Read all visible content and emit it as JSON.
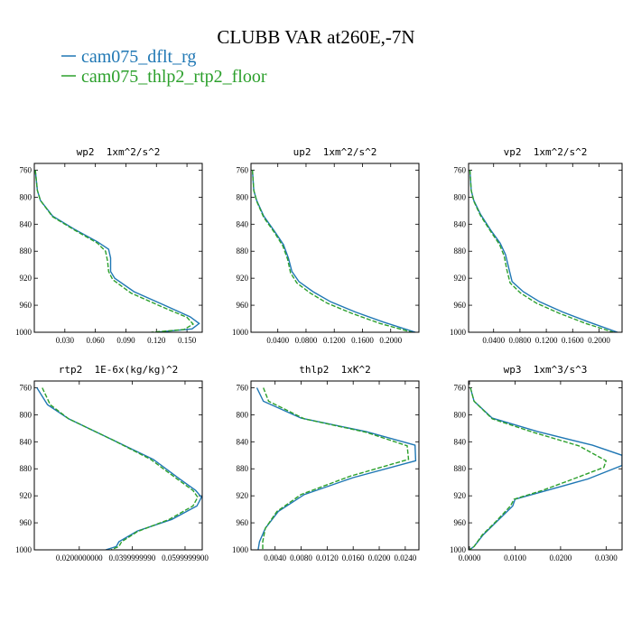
{
  "title": "CLUBB VAR at260E,-7N",
  "legend": [
    {
      "label": "cam075_dflt_rg",
      "color": "#1f77b4",
      "dash": "solid"
    },
    {
      "label": "cam075_thlp2_rtp2_floor",
      "color": "#2ca02c",
      "dash": "dashed"
    }
  ],
  "chart_data": [
    {
      "type": "line",
      "title": "wp2  1xm^2/s^2",
      "xlim": [
        0,
        0.165
      ],
      "ylim": [
        1000,
        750
      ],
      "y_inverted": true,
      "xticks": [
        0.03,
        0.06,
        0.09,
        0.12,
        0.15
      ],
      "xtick_labels": [
        "0.030",
        "0.060",
        "0.090",
        "0.120",
        "0.150"
      ],
      "yticks": [
        760,
        800,
        840,
        880,
        920,
        960,
        1000
      ],
      "ytick_labels": [
        "760",
        "800",
        "840",
        "880",
        "920",
        "960",
        "1000"
      ],
      "series": [
        {
          "name": "cam075_dflt_rg",
          "points": [
            [
              0.001,
              760
            ],
            [
              0.003,
              790
            ],
            [
              0.006,
              805
            ],
            [
              0.018,
              828
            ],
            [
              0.04,
              848
            ],
            [
              0.062,
              866
            ],
            [
              0.073,
              877
            ],
            [
              0.075,
              890
            ],
            [
              0.075,
              910
            ],
            [
              0.079,
              920
            ],
            [
              0.098,
              940
            ],
            [
              0.128,
              960
            ],
            [
              0.153,
              977
            ],
            [
              0.162,
              987
            ],
            [
              0.155,
              995
            ],
            [
              0.12,
              1000
            ]
          ]
        },
        {
          "name": "cam075_thlp2_rtp2_floor",
          "points": [
            [
              0.001,
              760
            ],
            [
              0.003,
              790
            ],
            [
              0.006,
              805
            ],
            [
              0.018,
              829
            ],
            [
              0.04,
              849
            ],
            [
              0.062,
              868
            ],
            [
              0.07,
              880
            ],
            [
              0.072,
              895
            ],
            [
              0.073,
              910
            ],
            [
              0.077,
              922
            ],
            [
              0.095,
              942
            ],
            [
              0.125,
              962
            ],
            [
              0.15,
              978
            ],
            [
              0.156,
              988
            ],
            [
              0.147,
              996
            ],
            [
              0.115,
              1000
            ]
          ]
        }
      ]
    },
    {
      "type": "line",
      "title": "up2  1xm^2/s^2",
      "xlim": [
        0.002,
        0.24
      ],
      "ylim": [
        1000,
        750
      ],
      "y_inverted": true,
      "xticks": [
        0.04,
        0.08,
        0.12,
        0.16,
        0.2
      ],
      "xtick_labels": [
        "0.0400",
        "0.0800",
        "0.1200",
        "0.1600",
        "0.2000"
      ],
      "yticks": [
        760,
        800,
        840,
        880,
        920,
        960,
        1000
      ],
      "ytick_labels": [
        "760",
        "800",
        "840",
        "880",
        "920",
        "960",
        "1000"
      ],
      "series": [
        {
          "name": "cam075_dflt_rg",
          "points": [
            [
              0.004,
              760
            ],
            [
              0.006,
              790
            ],
            [
              0.01,
              805
            ],
            [
              0.02,
              828
            ],
            [
              0.035,
              850
            ],
            [
              0.048,
              870
            ],
            [
              0.055,
              890
            ],
            [
              0.06,
              910
            ],
            [
              0.07,
              925
            ],
            [
              0.09,
              940
            ],
            [
              0.115,
              955
            ],
            [
              0.15,
              970
            ],
            [
              0.19,
              985
            ],
            [
              0.235,
              1000
            ]
          ]
        },
        {
          "name": "cam075_thlp2_rtp2_floor",
          "points": [
            [
              0.004,
              760
            ],
            [
              0.006,
              790
            ],
            [
              0.01,
              806
            ],
            [
              0.02,
              830
            ],
            [
              0.035,
              852
            ],
            [
              0.047,
              872
            ],
            [
              0.054,
              892
            ],
            [
              0.058,
              912
            ],
            [
              0.067,
              927
            ],
            [
              0.086,
              942
            ],
            [
              0.11,
              957
            ],
            [
              0.145,
              972
            ],
            [
              0.185,
              987
            ],
            [
              0.23,
              1000
            ]
          ]
        }
      ]
    },
    {
      "type": "line",
      "title": "vp2  1xm^2/s^2",
      "xlim": [
        0.002,
        0.235
      ],
      "ylim": [
        1000,
        750
      ],
      "y_inverted": true,
      "xticks": [
        0.04,
        0.08,
        0.12,
        0.16,
        0.2
      ],
      "xtick_labels": [
        "0.0400",
        "0.0800",
        "0.1200",
        "0.1600",
        "0.2000"
      ],
      "yticks": [
        760,
        800,
        840,
        880,
        920,
        960,
        1000
      ],
      "ytick_labels": [
        "760",
        "800",
        "840",
        "880",
        "920",
        "960",
        "1000"
      ],
      "series": [
        {
          "name": "cam075_dflt_rg",
          "points": [
            [
              0.004,
              760
            ],
            [
              0.006,
              790
            ],
            [
              0.01,
              805
            ],
            [
              0.02,
              825
            ],
            [
              0.035,
              848
            ],
            [
              0.05,
              868
            ],
            [
              0.058,
              885
            ],
            [
              0.063,
              905
            ],
            [
              0.068,
              925
            ],
            [
              0.085,
              940
            ],
            [
              0.11,
              955
            ],
            [
              0.145,
              970
            ],
            [
              0.185,
              985
            ],
            [
              0.228,
              1000
            ]
          ]
        },
        {
          "name": "cam075_thlp2_rtp2_floor",
          "points": [
            [
              0.004,
              760
            ],
            [
              0.006,
              790
            ],
            [
              0.01,
              806
            ],
            [
              0.02,
              827
            ],
            [
              0.035,
              850
            ],
            [
              0.049,
              870
            ],
            [
              0.056,
              887
            ],
            [
              0.06,
              907
            ],
            [
              0.065,
              927
            ],
            [
              0.081,
              942
            ],
            [
              0.105,
              957
            ],
            [
              0.14,
              972
            ],
            [
              0.18,
              987
            ],
            [
              0.222,
              1000
            ]
          ]
        }
      ]
    },
    {
      "type": "line",
      "title": "rtp2  1E-6x(kg/kg)^2",
      "xlim": [
        0.003,
        0.0665
      ],
      "ylim": [
        1000,
        750
      ],
      "y_inverted": true,
      "xticks": [
        0.02,
        0.04,
        0.06
      ],
      "xtick_labels": [
        "0.0200000000",
        "0.0399999990",
        "0.0599999900"
      ],
      "yticks": [
        760,
        800,
        840,
        880,
        920,
        960,
        1000
      ],
      "ytick_labels": [
        "760",
        "800",
        "840",
        "880",
        "920",
        "960",
        "1000"
      ],
      "series": [
        {
          "name": "cam075_dflt_rg",
          "points": [
            [
              0.004,
              760
            ],
            [
              0.008,
              785
            ],
            [
              0.016,
              806
            ],
            [
              0.033,
              838
            ],
            [
              0.048,
              866
            ],
            [
              0.058,
              895
            ],
            [
              0.064,
              912
            ],
            [
              0.0662,
              922
            ],
            [
              0.0645,
              935
            ],
            [
              0.055,
              955
            ],
            [
              0.042,
              972
            ],
            [
              0.035,
              988
            ],
            [
              0.034,
              995
            ],
            [
              0.03,
              1000
            ]
          ]
        },
        {
          "name": "cam075_thlp2_rtp2_floor",
          "points": [
            [
              0.006,
              760
            ],
            [
              0.009,
              785
            ],
            [
              0.016,
              806
            ],
            [
              0.033,
              838
            ],
            [
              0.047,
              866
            ],
            [
              0.057,
              895
            ],
            [
              0.063,
              912
            ],
            [
              0.0648,
              922
            ],
            [
              0.063,
              935
            ],
            [
              0.054,
              955
            ],
            [
              0.042,
              973
            ],
            [
              0.036,
              988
            ],
            [
              0.035,
              995
            ],
            [
              0.032,
              1000
            ]
          ]
        }
      ]
    },
    {
      "type": "line",
      "title": "thlp2  1xK^2",
      "xlim": [
        0.0003,
        0.0261
      ],
      "ylim": [
        1000,
        750
      ],
      "y_inverted": true,
      "xticks": [
        0.004,
        0.008,
        0.012,
        0.016,
        0.02,
        0.024
      ],
      "xtick_labels": [
        "0.0040",
        "0.0080",
        "0.0120",
        "0.0160",
        "0.0200",
        "0.0240"
      ],
      "yticks": [
        760,
        800,
        840,
        880,
        920,
        960,
        1000
      ],
      "ytick_labels": [
        "760",
        "800",
        "840",
        "880",
        "920",
        "960",
        "1000"
      ],
      "series": [
        {
          "name": "cam075_dflt_rg",
          "points": [
            [
              0.0012,
              760
            ],
            [
              0.0022,
              780
            ],
            [
              0.008,
              805
            ],
            [
              0.018,
              825
            ],
            [
              0.0255,
              845
            ],
            [
              0.0256,
              868
            ],
            [
              0.016,
              893
            ],
            [
              0.0085,
              918
            ],
            [
              0.0045,
              943
            ],
            [
              0.0025,
              968
            ],
            [
              0.0016,
              988
            ],
            [
              0.0014,
              1000
            ]
          ]
        },
        {
          "name": "cam075_thlp2_rtp2_floor",
          "points": [
            [
              0.0022,
              760
            ],
            [
              0.003,
              780
            ],
            [
              0.0085,
              806
            ],
            [
              0.018,
              826
            ],
            [
              0.0243,
              846
            ],
            [
              0.0245,
              866
            ],
            [
              0.0155,
              891
            ],
            [
              0.008,
              918
            ],
            [
              0.0043,
              943
            ],
            [
              0.0025,
              968
            ],
            [
              0.0021,
              988
            ],
            [
              0.0021,
              1000
            ]
          ]
        }
      ]
    },
    {
      "type": "line",
      "title": "wp3  1xm^3/s^3",
      "xlim": [
        -0.0002,
        0.0335
      ],
      "ylim": [
        1000,
        750
      ],
      "y_inverted": true,
      "xticks": [
        0.0,
        0.01,
        0.02,
        0.03
      ],
      "xtick_labels": [
        "0.0000",
        "0.0100",
        "0.0200",
        "0.0300"
      ],
      "yticks": [
        760,
        800,
        840,
        880,
        920,
        960,
        1000
      ],
      "ytick_labels": [
        "760",
        "800",
        "840",
        "880",
        "920",
        "960",
        "1000"
      ],
      "series": [
        {
          "name": "cam075_dflt_rg",
          "points": [
            [
              0.0002,
              760
            ],
            [
              0.001,
              780
            ],
            [
              0.005,
              805
            ],
            [
              0.015,
              825
            ],
            [
              0.027,
              845
            ],
            [
              0.0335,
              860
            ],
            [
              0.0335,
              875
            ],
            [
              0.026,
              895
            ],
            [
              0.017,
              912
            ],
            [
              0.01,
              925
            ],
            [
              0.0095,
              935
            ],
            [
              0.006,
              958
            ],
            [
              0.003,
              978
            ],
            [
              0.001,
              995
            ],
            [
              0.0,
              1000
            ]
          ]
        },
        {
          "name": "cam075_thlp2_rtp2_floor",
          "points": [
            [
              0.0002,
              760
            ],
            [
              0.001,
              780
            ],
            [
              0.005,
              806
            ],
            [
              0.014,
              826
            ],
            [
              0.024,
              846
            ],
            [
              0.03,
              868
            ],
            [
              0.0295,
              878
            ],
            [
              0.022,
              897
            ],
            [
              0.016,
              912
            ],
            [
              0.0098,
              925
            ],
            [
              0.009,
              935
            ],
            [
              0.0058,
              958
            ],
            [
              0.0028,
              978
            ],
            [
              0.001,
              995
            ],
            [
              0.0,
              1000
            ]
          ]
        }
      ]
    }
  ]
}
